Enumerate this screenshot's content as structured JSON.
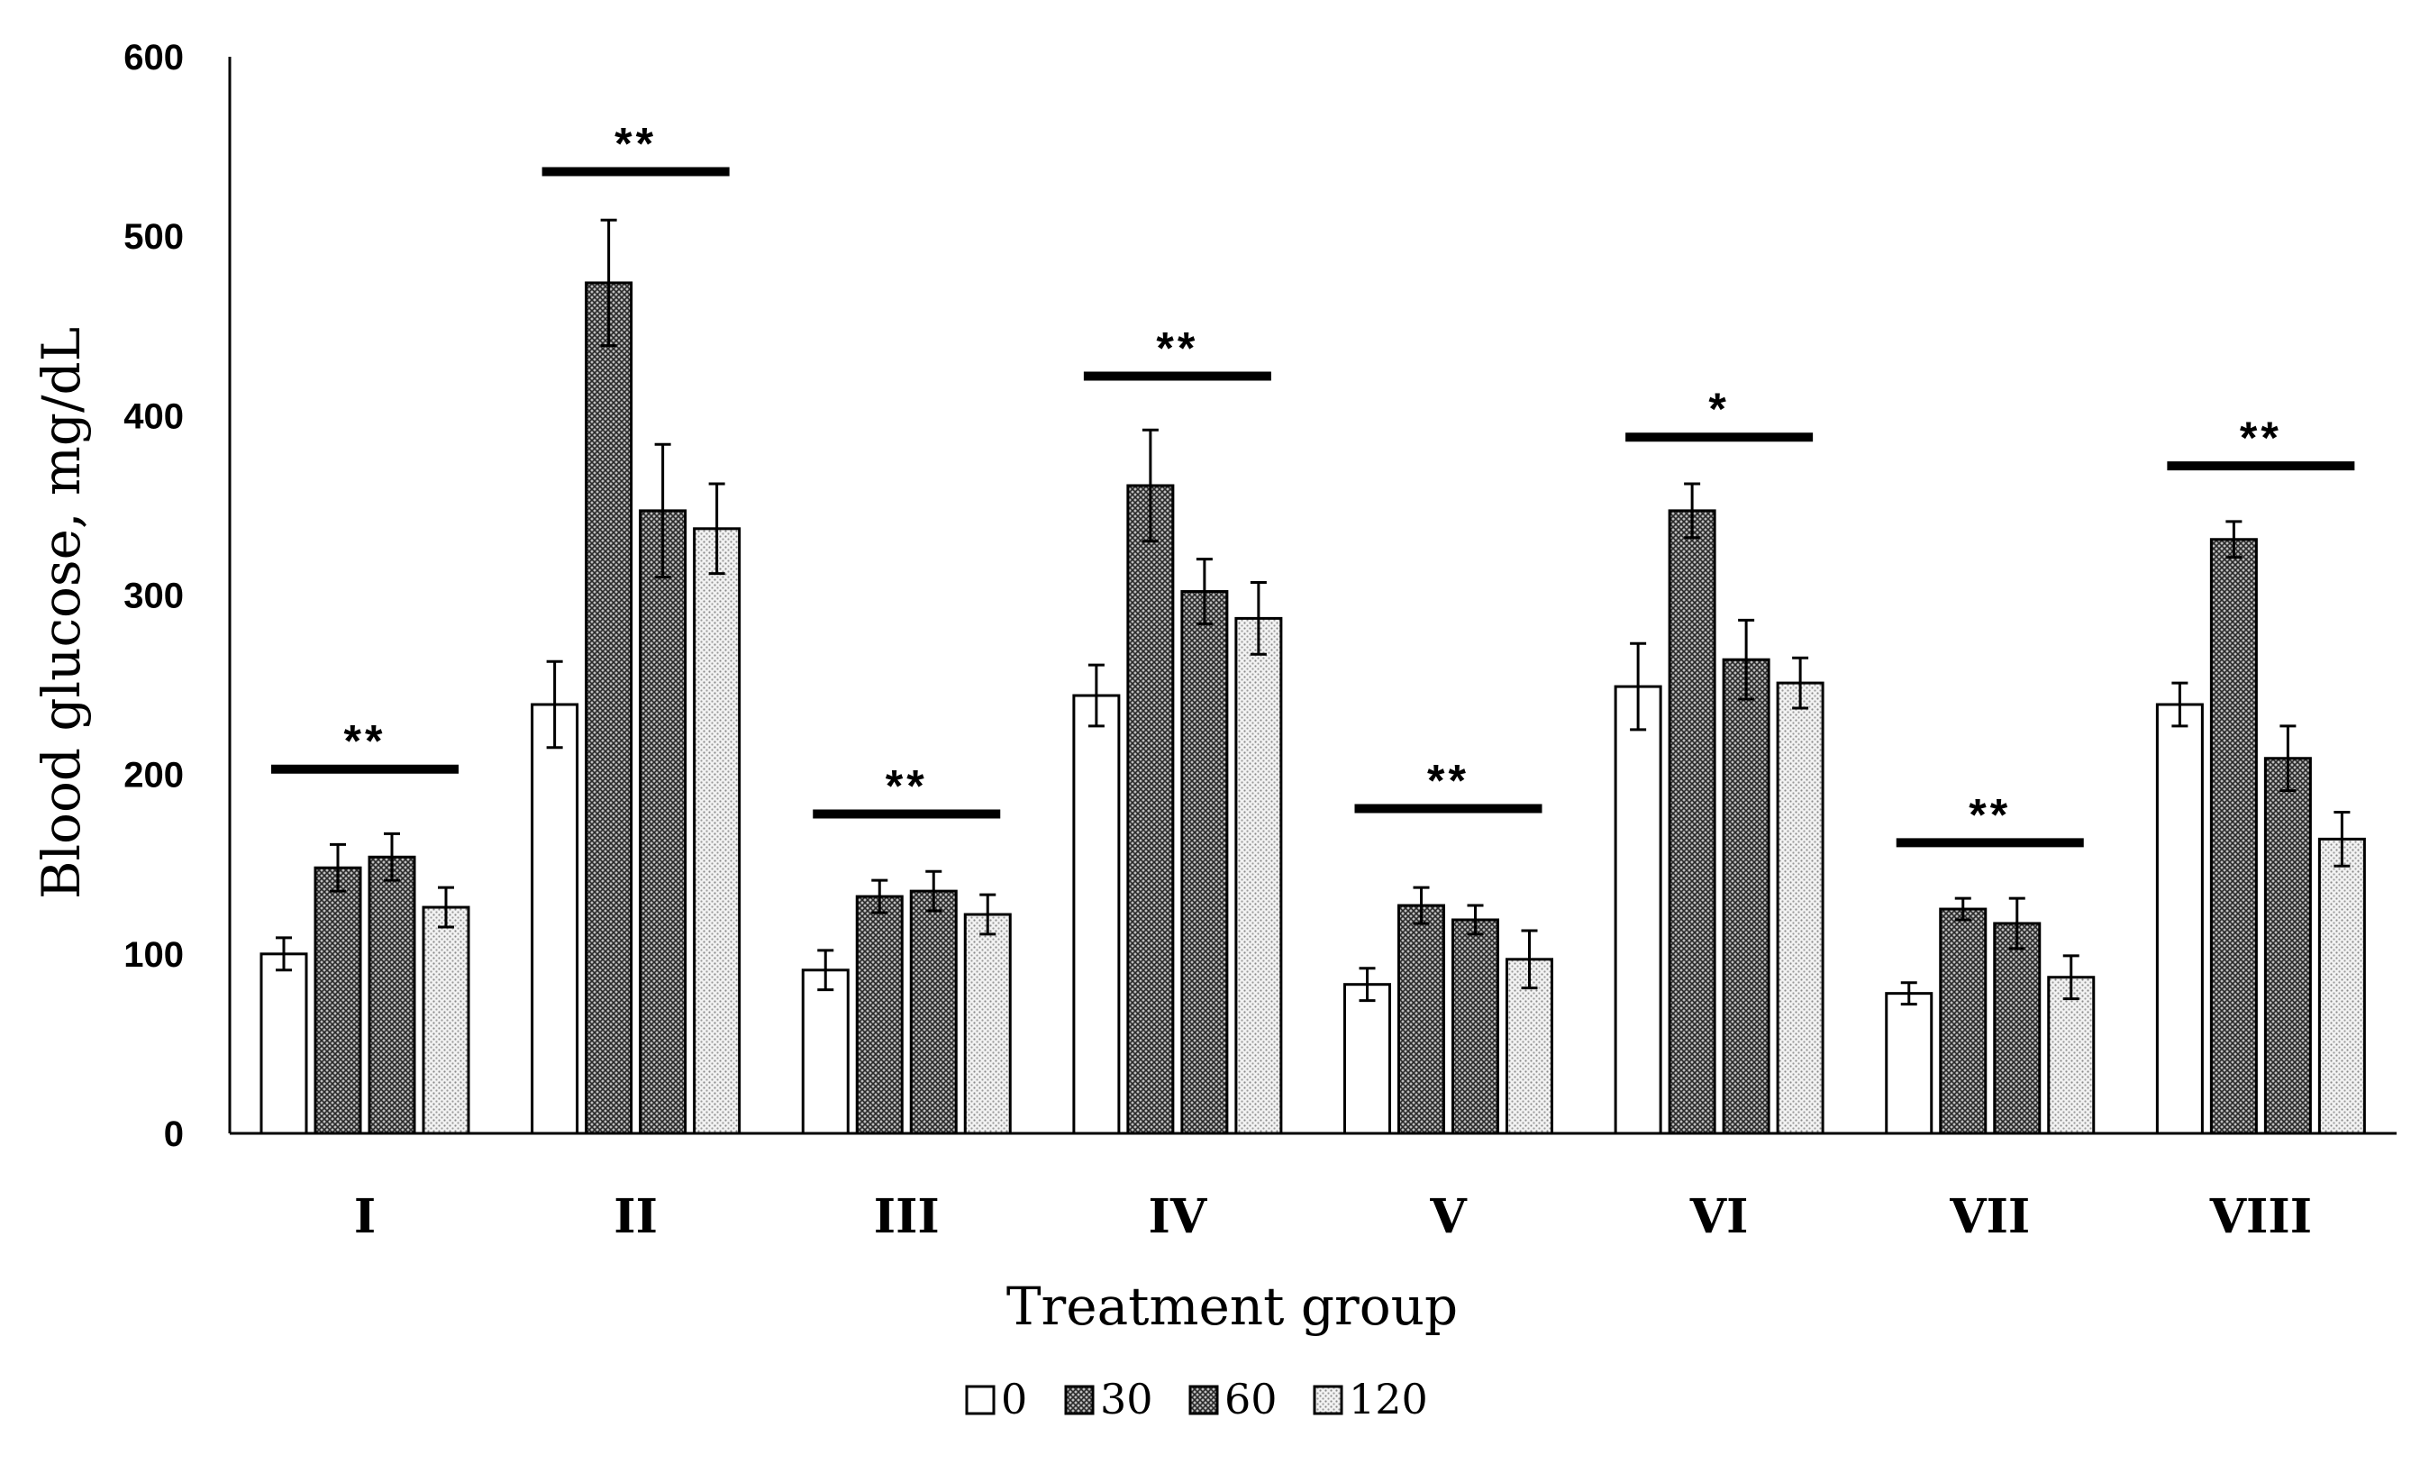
{
  "chart_data": {
    "type": "bar",
    "title": "",
    "xlabel": "Treatment group",
    "ylabel": "Blood glucose, mg/dL",
    "ylim": [
      0,
      600
    ],
    "yticks": [
      "0",
      "100",
      "200",
      "300",
      "400",
      "500",
      "600"
    ],
    "grid": false,
    "legend_position": "bottom-center",
    "categories": [
      "I",
      "II",
      "III",
      "IV",
      "V",
      "VI",
      "VII",
      "VIII"
    ],
    "series": [
      {
        "name": "0",
        "pattern": "white",
        "values": [
          100,
          239,
          91,
          244,
          83,
          249,
          78,
          239
        ],
        "errors": [
          9,
          24,
          11,
          17,
          9,
          24,
          6,
          12
        ]
      },
      {
        "name": "30",
        "pattern": "dark-crosshatch",
        "values": [
          148,
          474,
          132,
          361,
          127,
          347,
          125,
          331
        ],
        "errors": [
          13,
          35,
          9,
          31,
          10,
          15,
          6,
          10
        ]
      },
      {
        "name": "60",
        "pattern": "dark-crosshatch",
        "values": [
          154,
          347,
          135,
          302,
          119,
          264,
          117,
          209
        ],
        "errors": [
          13,
          37,
          11,
          18,
          8,
          22,
          14,
          18
        ]
      },
      {
        "name": "120",
        "pattern": "light-dots",
        "values": [
          126,
          337,
          122,
          287,
          97,
          251,
          87,
          164
        ],
        "errors": [
          11,
          25,
          11,
          20,
          16,
          14,
          12,
          15
        ]
      }
    ],
    "significance": [
      {
        "category": "I",
        "label": "**",
        "y": 203
      },
      {
        "category": "II",
        "label": "**",
        "y": 536
      },
      {
        "category": "III",
        "label": "**",
        "y": 178
      },
      {
        "category": "IV",
        "label": "**",
        "y": 422
      },
      {
        "category": "V",
        "label": "**",
        "y": 181
      },
      {
        "category": "VI",
        "label": "*",
        "y": 388
      },
      {
        "category": "VII",
        "label": "**",
        "y": 162
      },
      {
        "category": "VIII",
        "label": "**",
        "y": 372
      }
    ]
  }
}
